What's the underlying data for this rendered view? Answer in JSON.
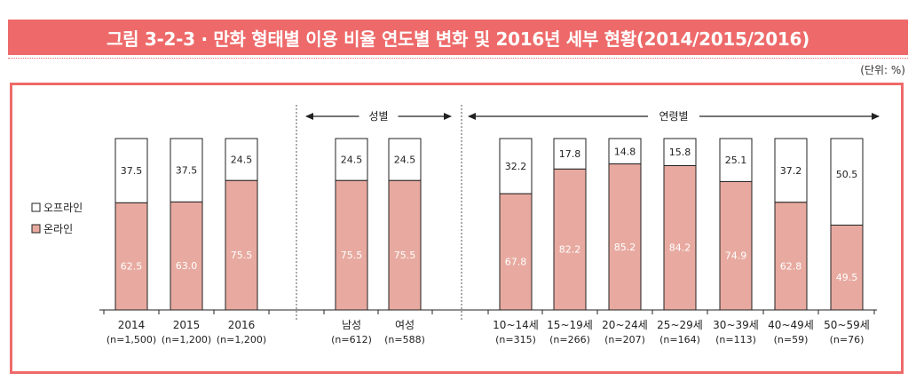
{
  "title": "그림 3-2-3 · 만화 형태별 이용 비율 연도별 변화 및 2016년 세부 현황(2014/2015/2016)",
  "unit": "(단위: %)",
  "chart_data": {
    "type": "bar",
    "stacked": true,
    "ylim": [
      0,
      100
    ],
    "legend": {
      "placement": "left",
      "items": [
        {
          "label": "오프라인",
          "color": "#ffffff"
        },
        {
          "label": "온라인",
          "color": "#e8aaa0"
        }
      ]
    },
    "groups": [
      {
        "label": "",
        "start": 0,
        "end": 2
      },
      {
        "label": "성별",
        "start": 3,
        "end": 4
      },
      {
        "label": "연령별",
        "start": 5,
        "end": 11
      }
    ],
    "categories": [
      {
        "label": "2014",
        "sub": "(n=1,500)"
      },
      {
        "label": "2015",
        "sub": "(n=1,200)"
      },
      {
        "label": "2016",
        "sub": "(n=1,200)"
      },
      {
        "label": "남성",
        "sub": "(n=612)"
      },
      {
        "label": "여성",
        "sub": "(n=588)"
      },
      {
        "label": "10~14세",
        "sub": "(n=315)"
      },
      {
        "label": "15~19세",
        "sub": "(n=266)"
      },
      {
        "label": "20~24세",
        "sub": "(n=207)"
      },
      {
        "label": "25~29세",
        "sub": "(n=164)"
      },
      {
        "label": "30~39세",
        "sub": "(n=113)"
      },
      {
        "label": "40~49세",
        "sub": "(n=59)"
      },
      {
        "label": "50~59세",
        "sub": "(n=76)"
      }
    ],
    "series": [
      {
        "name": "온라인",
        "values": [
          62.5,
          63.0,
          75.5,
          75.5,
          75.5,
          67.8,
          82.2,
          85.2,
          84.2,
          74.9,
          62.8,
          49.5
        ]
      },
      {
        "name": "오프라인",
        "values": [
          37.5,
          37.5,
          24.5,
          24.5,
          24.5,
          32.2,
          17.8,
          14.8,
          15.8,
          25.1,
          37.2,
          50.5
        ]
      }
    ],
    "value_labels": {
      "온라인": [
        "62.5",
        "63.0",
        "75.5",
        "75.5",
        "75.5",
        "67.8",
        "82.2",
        "85.2",
        "84.2",
        "74.9",
        "62.8",
        "49.5"
      ],
      "오프라인": [
        "37.5",
        "37.5",
        "24.5",
        "24.5",
        "24.5",
        "32.2",
        "17.8",
        "14.8",
        "15.8",
        "25.1",
        "37.2",
        "50.5"
      ]
    }
  }
}
